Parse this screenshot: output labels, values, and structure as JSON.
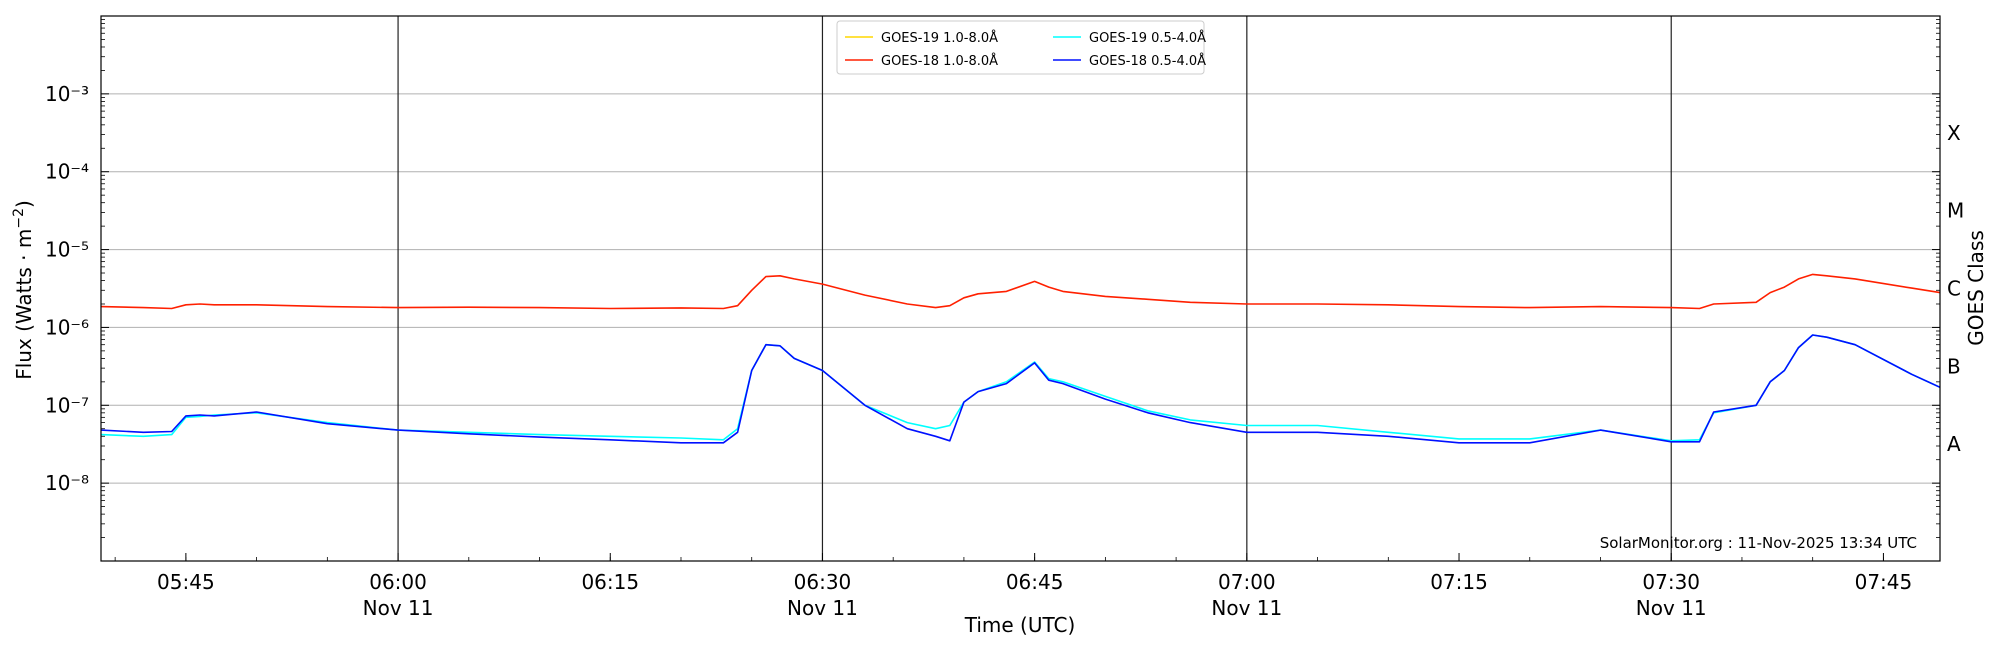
{
  "chart_data": {
    "type": "line",
    "xlabel": "Time (UTC)",
    "ylabel": "Flux (Watts · m",
    "ylabel_superscript": "−2",
    "ylabel_suffix": ")",
    "y_scale": "log",
    "ylim": [
      1e-09,
      0.01
    ],
    "xlim": [
      "2025-11-11 05:39",
      "2025-11-11 07:49"
    ],
    "grid": "horizontal at each decade",
    "legend_position": "top-center",
    "watermark": "SolarMonitor.org : 11-Nov-2025 13:34 UTC",
    "right_axis_label": "GOES Class",
    "goes_classes": [
      "A",
      "B",
      "C",
      "M",
      "X"
    ],
    "y_ticks": [
      "10⁻⁸",
      "10⁻⁷",
      "10⁻⁶",
      "10⁻⁵",
      "10⁻⁴",
      "10⁻³"
    ],
    "x_ticks": [
      {
        "time": "05:45",
        "date": ""
      },
      {
        "time": "06:00",
        "date": "Nov 11"
      },
      {
        "time": "06:15",
        "date": ""
      },
      {
        "time": "06:30",
        "date": "Nov 11"
      },
      {
        "time": "06:45",
        "date": ""
      },
      {
        "time": "07:00",
        "date": "Nov 11"
      },
      {
        "time": "07:15",
        "date": ""
      },
      {
        "time": "07:30",
        "date": "Nov 11"
      },
      {
        "time": "07:45",
        "date": ""
      }
    ],
    "vertical_lines": [
      "06:00",
      "06:30",
      "07:00",
      "07:30"
    ],
    "series": [
      {
        "name": "GOES-19 1.0-8.0Å",
        "color": "#ffd700",
        "x": [],
        "y": []
      },
      {
        "name": "GOES-18 1.0-8.0Å",
        "color": "#ff2000",
        "x": [
          "05:39",
          "05:42",
          "05:44",
          "05:45",
          "05:46",
          "05:47",
          "05:50",
          "05:55",
          "06:00",
          "06:05",
          "06:10",
          "06:15",
          "06:20",
          "06:23",
          "06:24",
          "06:25",
          "06:26",
          "06:27",
          "06:28",
          "06:30",
          "06:33",
          "06:36",
          "06:38",
          "06:39",
          "06:40",
          "06:41",
          "06:43",
          "06:45",
          "06:46",
          "06:47",
          "06:50",
          "06:53",
          "06:56",
          "07:00",
          "07:05",
          "07:10",
          "07:15",
          "07:20",
          "07:25",
          "07:30",
          "07:32",
          "07:33",
          "07:36",
          "07:37",
          "07:38",
          "07:39",
          "07:40",
          "07:41",
          "07:43",
          "07:47",
          "07:49"
        ],
        "y": [
          1.85e-06,
          1.8e-06,
          1.75e-06,
          1.95e-06,
          2e-06,
          1.95e-06,
          1.95e-06,
          1.85e-06,
          1.8e-06,
          1.82e-06,
          1.8e-06,
          1.75e-06,
          1.78e-06,
          1.75e-06,
          1.9e-06,
          3e-06,
          4.5e-06,
          4.6e-06,
          4.2e-06,
          3.6e-06,
          2.6e-06,
          2e-06,
          1.8e-06,
          1.9e-06,
          2.4e-06,
          2.7e-06,
          2.9e-06,
          3.9e-06,
          3.3e-06,
          2.9e-06,
          2.5e-06,
          2.3e-06,
          2.1e-06,
          2e-06,
          2e-06,
          1.95e-06,
          1.85e-06,
          1.8e-06,
          1.85e-06,
          1.8e-06,
          1.75e-06,
          2e-06,
          2.1e-06,
          2.8e-06,
          3.3e-06,
          4.2e-06,
          4.8e-06,
          4.6e-06,
          4.2e-06,
          3.2e-06,
          2.8e-06
        ]
      },
      {
        "name": "GOES-19 0.5-4.0Å",
        "color": "#00ffff",
        "x": [
          "05:39",
          "05:42",
          "05:44",
          "05:45",
          "05:46",
          "05:47",
          "05:50",
          "05:55",
          "06:00",
          "06:05",
          "06:10",
          "06:15",
          "06:20",
          "06:23",
          "06:24",
          "06:25",
          "06:26",
          "06:27",
          "06:28",
          "06:30",
          "06:33",
          "06:36",
          "06:38",
          "06:39",
          "06:40",
          "06:41",
          "06:43",
          "06:45",
          "06:46",
          "06:47",
          "06:50",
          "06:53",
          "06:56",
          "07:00",
          "07:05",
          "07:10",
          "07:15",
          "07:20",
          "07:25",
          "07:30",
          "07:32",
          "07:33",
          "07:36",
          "07:37",
          "07:38",
          "07:39",
          "07:40",
          "07:41",
          "07:43",
          "07:47",
          "07:49"
        ],
        "y": [
          4.2e-08,
          4e-08,
          4.2e-08,
          7e-08,
          7.2e-08,
          7.5e-08,
          8e-08,
          6e-08,
          4.8e-08,
          4.5e-08,
          4.2e-08,
          4e-08,
          3.8e-08,
          3.6e-08,
          5e-08,
          2.8e-07,
          6e-07,
          5.8e-07,
          4e-07,
          2.8e-07,
          1e-07,
          6e-08,
          5e-08,
          5.5e-08,
          1.1e-07,
          1.5e-07,
          2e-07,
          3.6e-07,
          2.2e-07,
          2e-07,
          1.3e-07,
          8.5e-08,
          6.5e-08,
          5.5e-08,
          5.5e-08,
          4.5e-08,
          3.7e-08,
          3.7e-08,
          4.8e-08,
          3.5e-08,
          3.6e-08,
          8e-08,
          1e-07,
          2e-07,
          2.8e-07,
          5.5e-07,
          8e-07,
          7.5e-07,
          6e-07,
          2.5e-07,
          1.7e-07
        ]
      },
      {
        "name": "GOES-18 0.5-4.0Å",
        "color": "#0010ff",
        "x": [
          "05:39",
          "05:42",
          "05:44",
          "05:45",
          "05:46",
          "05:47",
          "05:50",
          "05:55",
          "06:00",
          "06:05",
          "06:10",
          "06:15",
          "06:20",
          "06:23",
          "06:24",
          "06:25",
          "06:26",
          "06:27",
          "06:28",
          "06:30",
          "06:33",
          "06:36",
          "06:38",
          "06:39",
          "06:40",
          "06:41",
          "06:43",
          "06:45",
          "06:46",
          "06:47",
          "06:50",
          "06:53",
          "06:56",
          "07:00",
          "07:05",
          "07:10",
          "07:15",
          "07:20",
          "07:25",
          "07:30",
          "07:32",
          "07:33",
          "07:36",
          "07:37",
          "07:38",
          "07:39",
          "07:40",
          "07:41",
          "07:43",
          "07:47",
          "07:49"
        ],
        "y": [
          4.8e-08,
          4.5e-08,
          4.6e-08,
          7.3e-08,
          7.5e-08,
          7.3e-08,
          8.2e-08,
          5.8e-08,
          4.8e-08,
          4.3e-08,
          3.9e-08,
          3.6e-08,
          3.3e-08,
          3.3e-08,
          4.5e-08,
          2.8e-07,
          6e-07,
          5.8e-07,
          4e-07,
          2.8e-07,
          1e-07,
          5e-08,
          4e-08,
          3.5e-08,
          1.1e-07,
          1.5e-07,
          1.9e-07,
          3.5e-07,
          2.1e-07,
          1.9e-07,
          1.2e-07,
          8e-08,
          6e-08,
          4.5e-08,
          4.5e-08,
          4e-08,
          3.3e-08,
          3.3e-08,
          4.8e-08,
          3.4e-08,
          3.4e-08,
          8.2e-08,
          1e-07,
          2e-07,
          2.8e-07,
          5.5e-07,
          8e-07,
          7.5e-07,
          6e-07,
          2.5e-07,
          1.7e-07
        ]
      }
    ]
  }
}
